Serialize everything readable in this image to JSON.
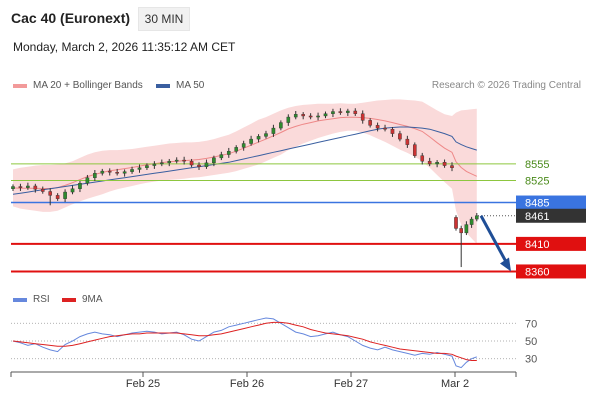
{
  "header": {
    "title": "Cac 40 (Euronext)",
    "timeframe": "30 MIN",
    "datetime": "Monday, March 2, 2026 11:35:12 AM CET",
    "credit": "Research © 2026 Trading Central"
  },
  "legend": {
    "ma20": "MA 20 + Bollinger Bands",
    "ma50": "MA 50",
    "rsi": "RSI",
    "ma9": "9MA"
  },
  "colors": {
    "up": "#2e8b2e",
    "down": "#cc3333",
    "bollinger": "#f7c6c6",
    "ma20": "#ee8888",
    "ma50": "#3a5fa0",
    "resistance": "#8dc63f",
    "pivot": "#3a74e0",
    "support": "#e01010",
    "last": "#333333",
    "rsi": "#6688dd",
    "rsi_ma": "#dd2222"
  },
  "chart_data": [
    {
      "type": "candlestick",
      "title": "Cac 40 (Euronext)",
      "timeframe": "30 MIN",
      "x_ticks": [
        "Feb 25",
        "Feb 26",
        "Feb 27",
        "Mar 2"
      ],
      "ylim": [
        8330,
        8680
      ],
      "overlays": [
        "MA 20 + Bollinger Bands",
        "MA 50"
      ],
      "levels": [
        {
          "value": 8555,
          "label": "8555",
          "kind": "resistance"
        },
        {
          "value": 8525,
          "label": "8525",
          "kind": "resistance"
        },
        {
          "value": 8485,
          "label": "8485",
          "kind": "pivot"
        },
        {
          "value": 8461,
          "label": "8461",
          "kind": "last"
        },
        {
          "value": 8410,
          "label": "8410",
          "kind": "support"
        },
        {
          "value": 8360,
          "label": "8360",
          "kind": "support"
        }
      ],
      "forecast_arrow": {
        "from": 8461,
        "to": 8360
      },
      "close": [
        8514,
        8512,
        8515,
        8509,
        8505,
        8498,
        8492,
        8504,
        8510,
        8520,
        8530,
        8538,
        8542,
        8540,
        8538,
        8541,
        8545,
        8548,
        8552,
        8555,
        8557,
        8560,
        8562,
        8560,
        8553,
        8550,
        8557,
        8566,
        8572,
        8578,
        8585,
        8592,
        8600,
        8605,
        8610,
        8620,
        8630,
        8640,
        8645,
        8642,
        8640,
        8642,
        8646,
        8650,
        8648,
        8651,
        8646,
        8634,
        8625,
        8620,
        8618,
        8610,
        8600,
        8590,
        8570,
        8560,
        8555,
        8558,
        8552,
        8548,
        8438,
        8430,
        8445,
        8455,
        8461
      ],
      "bollinger_upper": [
        8545,
        8548,
        8550,
        8552,
        8553,
        8553,
        8554,
        8556,
        8560,
        8566,
        8572,
        8576,
        8579,
        8580,
        8580,
        8581,
        8582,
        8584,
        8586,
        8588,
        8590,
        8592,
        8593,
        8594,
        8594,
        8595,
        8597,
        8600,
        8604,
        8608,
        8614,
        8621,
        8628,
        8635,
        8640,
        8646,
        8652,
        8657,
        8660,
        8662,
        8663,
        8664,
        8664,
        8664,
        8665,
        8664,
        8664,
        8666,
        8668,
        8670,
        8671,
        8672,
        8672,
        8671,
        8670,
        8668,
        8660,
        8652,
        8645,
        8642,
        8648,
        8652,
        8653,
        8654,
        8655
      ],
      "bollinger_lower": [
        8478,
        8474,
        8472,
        8470,
        8468,
        8468,
        8470,
        8476,
        8482,
        8487,
        8492,
        8496,
        8500,
        8505,
        8509,
        8512,
        8515,
        8518,
        8521,
        8523,
        8525,
        8526,
        8527,
        8528,
        8530,
        8531,
        8533,
        8535,
        8537,
        8539,
        8542,
        8546,
        8550,
        8554,
        8560,
        8566,
        8572,
        8580,
        8586,
        8592,
        8597,
        8602,
        8606,
        8610,
        8613,
        8615,
        8615,
        8612,
        8607,
        8601,
        8595,
        8588,
        8581,
        8575,
        8568,
        8560,
        8548,
        8535,
        8522,
        8510,
        8470,
        8445,
        8430,
        8420,
        8410
      ],
      "ma50": [
        8500,
        8502,
        8504,
        8506,
        8508,
        8510,
        8512,
        8514,
        8516,
        8518,
        8520,
        8522,
        8524,
        8526,
        8528,
        8530,
        8532,
        8534,
        8536,
        8538,
        8540,
        8542,
        8544,
        8546,
        8548,
        8550,
        8552,
        8554,
        8556,
        8558,
        8561,
        8564,
        8567,
        8570,
        8573,
        8576,
        8579,
        8582,
        8585,
        8588,
        8591,
        8594,
        8597,
        8600,
        8603,
        8606,
        8609,
        8612,
        8615,
        8618,
        8620,
        8621,
        8622,
        8622,
        8621,
        8620,
        8618,
        8614,
        8610,
        8605,
        8595,
        8590,
        8586,
        8583,
        8580
      ]
    },
    {
      "type": "line",
      "title": "RSI",
      "x_ticks": [
        "Feb 25",
        "Feb 26",
        "Feb 27",
        "Mar 2"
      ],
      "y_ticks": [
        70,
        50,
        30
      ],
      "ylim": [
        15,
        85
      ],
      "series": [
        {
          "name": "RSI",
          "values": [
            50,
            48,
            45,
            47,
            43,
            40,
            38,
            46,
            50,
            55,
            58,
            60,
            58,
            57,
            55,
            57,
            59,
            60,
            61,
            60,
            58,
            59,
            60,
            57,
            52,
            50,
            55,
            60,
            62,
            66,
            68,
            70,
            72,
            74,
            76,
            75,
            70,
            65,
            60,
            58,
            55,
            56,
            58,
            60,
            57,
            55,
            50,
            45,
            42,
            40,
            43,
            40,
            38,
            36,
            34,
            36,
            35,
            37,
            35,
            33,
            22,
            20,
            26,
            30,
            32
          ]
        },
        {
          "name": "9MA",
          "values": [
            50,
            49,
            48,
            47,
            46,
            45,
            44,
            44,
            45,
            47,
            49,
            51,
            53,
            55,
            56,
            57,
            58,
            58,
            59,
            59,
            59,
            59,
            59,
            58,
            57,
            56,
            56,
            57,
            58,
            60,
            62,
            64,
            66,
            68,
            70,
            71,
            71,
            70,
            68,
            66,
            63,
            61,
            59,
            58,
            57,
            56,
            54,
            52,
            49,
            47,
            45,
            43,
            41,
            40,
            39,
            38,
            37,
            36,
            36,
            35,
            33,
            31,
            29,
            28,
            28
          ]
        }
      ]
    }
  ]
}
